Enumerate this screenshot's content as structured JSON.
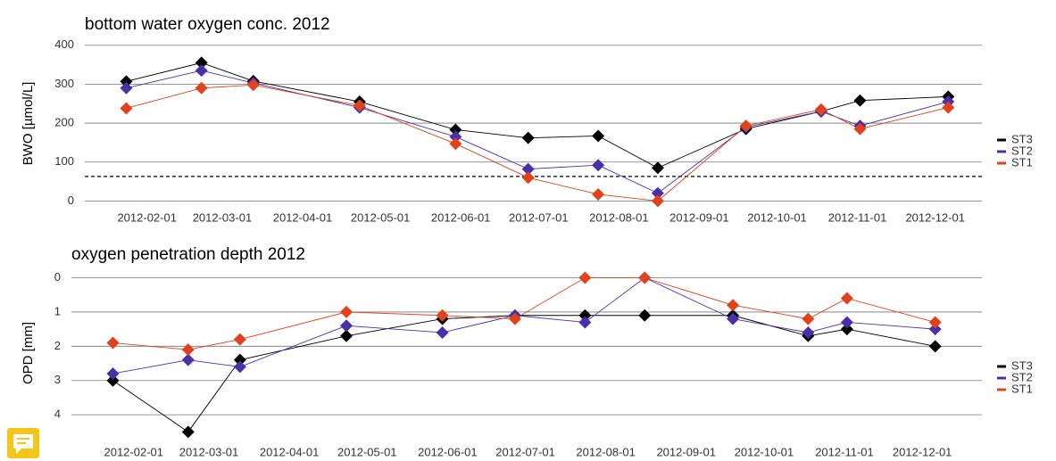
{
  "chart_data": [
    {
      "type": "line",
      "title": "bottom water oxygen conc. 2012",
      "y_label": "BWO [µmol/L]",
      "x": [
        "2012-01-24",
        "2012-02-22",
        "2012-03-13",
        "2012-04-23",
        "2012-05-30",
        "2012-06-27",
        "2012-07-24",
        "2012-08-16",
        "2012-09-19",
        "2012-10-18",
        "2012-11-02",
        "2012-12-06"
      ],
      "series": [
        {
          "name": "ST3",
          "color": "#000000",
          "values": [
            307,
            355,
            308,
            255,
            183,
            162,
            167,
            85,
            185,
            230,
            258,
            268
          ]
        },
        {
          "name": "ST2",
          "color": "#4b2fa8",
          "values": [
            290,
            335,
            303,
            240,
            165,
            82,
            92,
            20,
            190,
            230,
            193,
            255
          ]
        },
        {
          "name": "ST1",
          "color": "#e0421c",
          "values": [
            238,
            290,
            298,
            245,
            147,
            60,
            17,
            0,
            193,
            235,
            185,
            240
          ]
        }
      ],
      "xlim": [
        "2012-01-08",
        "2012-12-19"
      ],
      "xticks": [
        "2012-02-01",
        "2012-03-01",
        "2012-04-01",
        "2012-05-01",
        "2012-06-01",
        "2012-07-01",
        "2012-08-01",
        "2012-09-01",
        "2012-10-01",
        "2012-11-01",
        "2012-12-01"
      ],
      "ylim": [
        -22,
        420
      ],
      "yticks": [
        0,
        100,
        200,
        300,
        400
      ],
      "grid": true,
      "hline": 63,
      "legend": "right"
    },
    {
      "type": "line",
      "title": "oxygen penetration depth 2012",
      "y_label": "OPD [mm]",
      "x": [
        "2012-01-24",
        "2012-02-22",
        "2012-03-13",
        "2012-04-23",
        "2012-05-30",
        "2012-06-27",
        "2012-07-24",
        "2012-08-16",
        "2012-09-19",
        "2012-10-18",
        "2012-11-02",
        "2012-12-06"
      ],
      "series": [
        {
          "name": "ST3",
          "color": "#000000",
          "values": [
            3.0,
            4.5,
            2.4,
            1.7,
            1.2,
            1.1,
            1.1,
            1.1,
            1.1,
            1.7,
            1.5,
            2.0
          ]
        },
        {
          "name": "ST2",
          "color": "#4b2fa8",
          "values": [
            2.8,
            2.4,
            2.6,
            1.4,
            1.6,
            1.1,
            1.3,
            0.0,
            1.2,
            1.6,
            1.3,
            1.5
          ]
        },
        {
          "name": "ST1",
          "color": "#e0421c",
          "values": [
            1.9,
            2.1,
            1.8,
            1.0,
            1.1,
            1.2,
            0.0,
            0.0,
            0.8,
            1.2,
            0.6,
            1.3
          ]
        }
      ],
      "xlim": [
        "2012-01-08",
        "2012-12-24"
      ],
      "xticks": [
        "2012-02-01",
        "2012-03-01",
        "2012-04-01",
        "2012-05-01",
        "2012-06-01",
        "2012-07-01",
        "2012-08-01",
        "2012-09-01",
        "2012-10-01",
        "2012-11-01",
        "2012-12-01"
      ],
      "ylim": [
        4.7,
        -0.3
      ],
      "yticks": [
        0,
        1,
        2,
        3,
        4
      ],
      "grid": true,
      "legend": "right"
    }
  ]
}
